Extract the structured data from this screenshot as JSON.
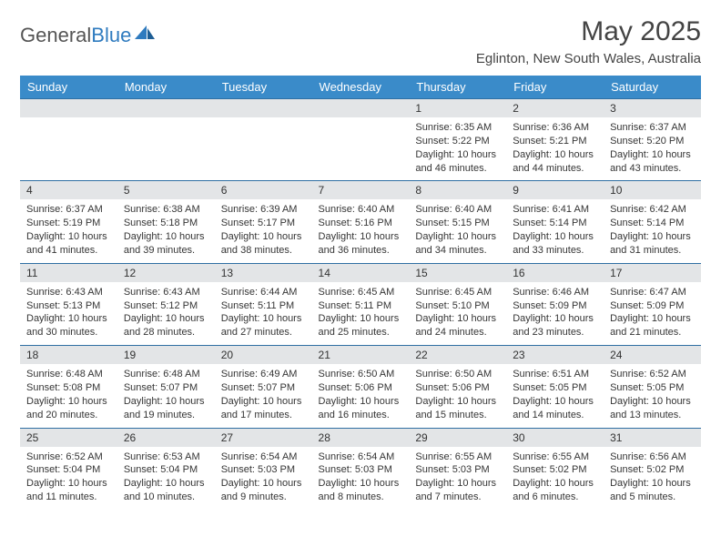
{
  "brand": {
    "part1": "General",
    "part2": "Blue"
  },
  "title": "May 2025",
  "location": "Eglinton, New South Wales, Australia",
  "colors": {
    "header_bg": "#3a8bc9",
    "header_text": "#ffffff",
    "row_divider": "#2f6fa3",
    "daynum_bg": "#e3e5e7",
    "text": "#353535",
    "brand_gray": "#555555",
    "brand_blue": "#2f7bbf"
  },
  "weekdays": [
    "Sunday",
    "Monday",
    "Tuesday",
    "Wednesday",
    "Thursday",
    "Friday",
    "Saturday"
  ],
  "weeks": [
    [
      null,
      null,
      null,
      null,
      {
        "n": "1",
        "sr": "6:35 AM",
        "ss": "5:22 PM",
        "dl": "10 hours and 46 minutes."
      },
      {
        "n": "2",
        "sr": "6:36 AM",
        "ss": "5:21 PM",
        "dl": "10 hours and 44 minutes."
      },
      {
        "n": "3",
        "sr": "6:37 AM",
        "ss": "5:20 PM",
        "dl": "10 hours and 43 minutes."
      }
    ],
    [
      {
        "n": "4",
        "sr": "6:37 AM",
        "ss": "5:19 PM",
        "dl": "10 hours and 41 minutes."
      },
      {
        "n": "5",
        "sr": "6:38 AM",
        "ss": "5:18 PM",
        "dl": "10 hours and 39 minutes."
      },
      {
        "n": "6",
        "sr": "6:39 AM",
        "ss": "5:17 PM",
        "dl": "10 hours and 38 minutes."
      },
      {
        "n": "7",
        "sr": "6:40 AM",
        "ss": "5:16 PM",
        "dl": "10 hours and 36 minutes."
      },
      {
        "n": "8",
        "sr": "6:40 AM",
        "ss": "5:15 PM",
        "dl": "10 hours and 34 minutes."
      },
      {
        "n": "9",
        "sr": "6:41 AM",
        "ss": "5:14 PM",
        "dl": "10 hours and 33 minutes."
      },
      {
        "n": "10",
        "sr": "6:42 AM",
        "ss": "5:14 PM",
        "dl": "10 hours and 31 minutes."
      }
    ],
    [
      {
        "n": "11",
        "sr": "6:43 AM",
        "ss": "5:13 PM",
        "dl": "10 hours and 30 minutes."
      },
      {
        "n": "12",
        "sr": "6:43 AM",
        "ss": "5:12 PM",
        "dl": "10 hours and 28 minutes."
      },
      {
        "n": "13",
        "sr": "6:44 AM",
        "ss": "5:11 PM",
        "dl": "10 hours and 27 minutes."
      },
      {
        "n": "14",
        "sr": "6:45 AM",
        "ss": "5:11 PM",
        "dl": "10 hours and 25 minutes."
      },
      {
        "n": "15",
        "sr": "6:45 AM",
        "ss": "5:10 PM",
        "dl": "10 hours and 24 minutes."
      },
      {
        "n": "16",
        "sr": "6:46 AM",
        "ss": "5:09 PM",
        "dl": "10 hours and 23 minutes."
      },
      {
        "n": "17",
        "sr": "6:47 AM",
        "ss": "5:09 PM",
        "dl": "10 hours and 21 minutes."
      }
    ],
    [
      {
        "n": "18",
        "sr": "6:48 AM",
        "ss": "5:08 PM",
        "dl": "10 hours and 20 minutes."
      },
      {
        "n": "19",
        "sr": "6:48 AM",
        "ss": "5:07 PM",
        "dl": "10 hours and 19 minutes."
      },
      {
        "n": "20",
        "sr": "6:49 AM",
        "ss": "5:07 PM",
        "dl": "10 hours and 17 minutes."
      },
      {
        "n": "21",
        "sr": "6:50 AM",
        "ss": "5:06 PM",
        "dl": "10 hours and 16 minutes."
      },
      {
        "n": "22",
        "sr": "6:50 AM",
        "ss": "5:06 PM",
        "dl": "10 hours and 15 minutes."
      },
      {
        "n": "23",
        "sr": "6:51 AM",
        "ss": "5:05 PM",
        "dl": "10 hours and 14 minutes."
      },
      {
        "n": "24",
        "sr": "6:52 AM",
        "ss": "5:05 PM",
        "dl": "10 hours and 13 minutes."
      }
    ],
    [
      {
        "n": "25",
        "sr": "6:52 AM",
        "ss": "5:04 PM",
        "dl": "10 hours and 11 minutes."
      },
      {
        "n": "26",
        "sr": "6:53 AM",
        "ss": "5:04 PM",
        "dl": "10 hours and 10 minutes."
      },
      {
        "n": "27",
        "sr": "6:54 AM",
        "ss": "5:03 PM",
        "dl": "10 hours and 9 minutes."
      },
      {
        "n": "28",
        "sr": "6:54 AM",
        "ss": "5:03 PM",
        "dl": "10 hours and 8 minutes."
      },
      {
        "n": "29",
        "sr": "6:55 AM",
        "ss": "5:03 PM",
        "dl": "10 hours and 7 minutes."
      },
      {
        "n": "30",
        "sr": "6:55 AM",
        "ss": "5:02 PM",
        "dl": "10 hours and 6 minutes."
      },
      {
        "n": "31",
        "sr": "6:56 AM",
        "ss": "5:02 PM",
        "dl": "10 hours and 5 minutes."
      }
    ]
  ],
  "labels": {
    "sunrise": "Sunrise: ",
    "sunset": "Sunset: ",
    "daylight": "Daylight: "
  }
}
